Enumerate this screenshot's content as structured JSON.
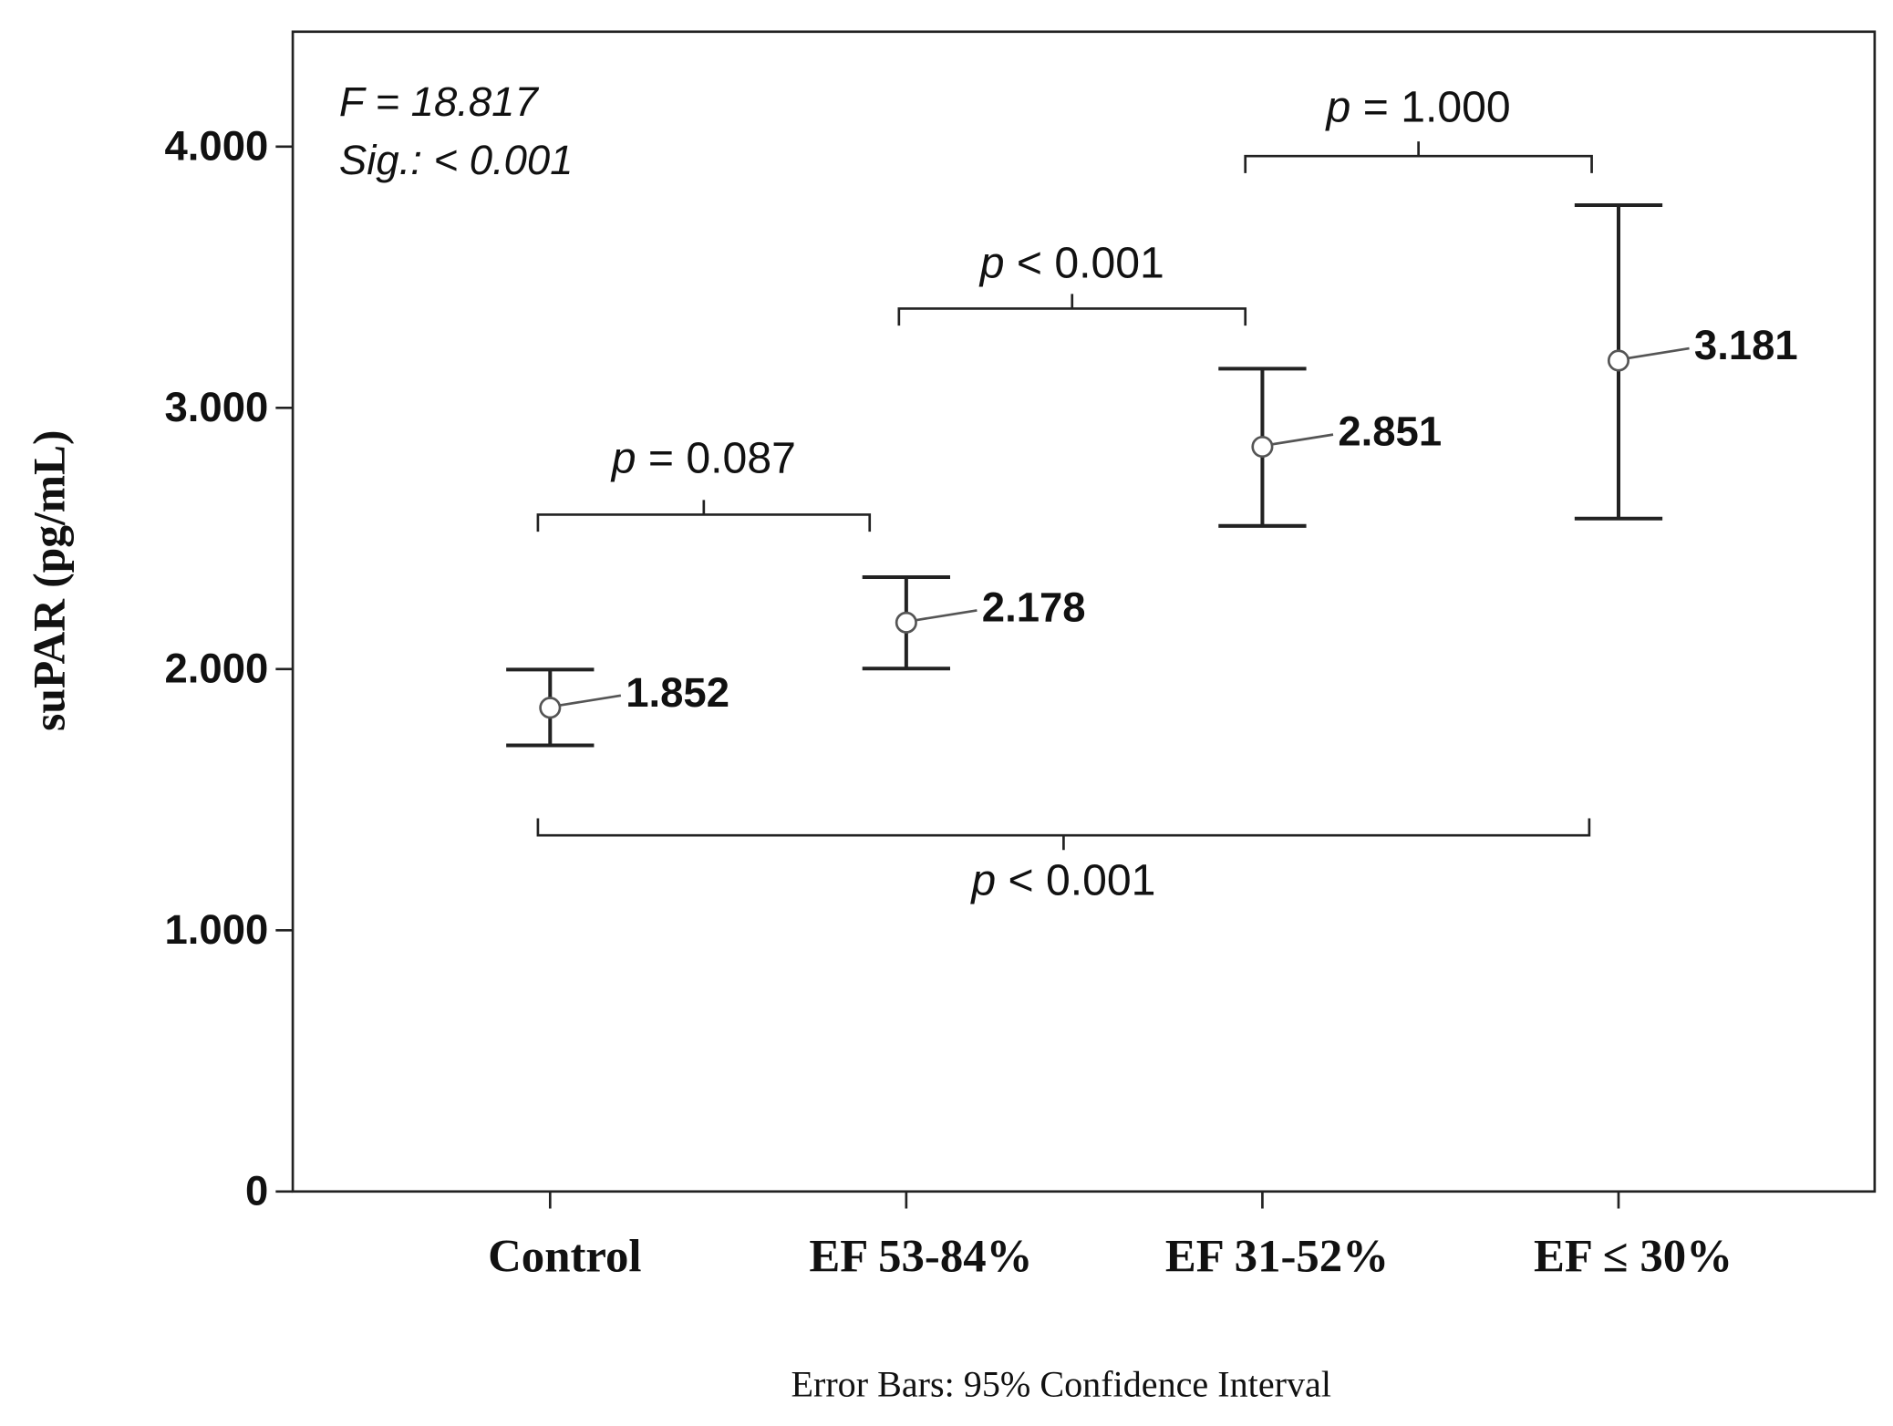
{
  "chart_data": {
    "type": "errorbar",
    "ylabel": "suPAR (pg/mL)",
    "footer": "Error Bars: 95% Confidence Interval",
    "stats": [
      "F = 18.817",
      "Sig.: < 0.001"
    ],
    "categories": [
      "Control",
      "EF 53-84%",
      "EF 31-52%",
      "EF ≤ 30%"
    ],
    "values": [
      1.852,
      2.178,
      2.851,
      3.181
    ],
    "ci_low": [
      1.708,
      2.002,
      2.548,
      2.576
    ],
    "ci_high": [
      1.998,
      2.352,
      3.15,
      3.776
    ],
    "ylim": [
      0,
      4.44
    ],
    "yticks": [
      0,
      {
        "value": 1,
        "label": "1.000"
      },
      {
        "value": 2,
        "label": "2.000"
      },
      {
        "value": 3,
        "label": "3.000"
      },
      {
        "value": 4,
        "label": "4.000"
      }
    ],
    "annotations": [
      {
        "symbol": "p",
        "text": "= 0.087"
      },
      {
        "symbol": "p",
        "text": "< 0.001"
      },
      {
        "symbol": "p",
        "text": "= 1.000"
      },
      {
        "symbol": "p",
        "text": "< 0.001"
      }
    ]
  }
}
